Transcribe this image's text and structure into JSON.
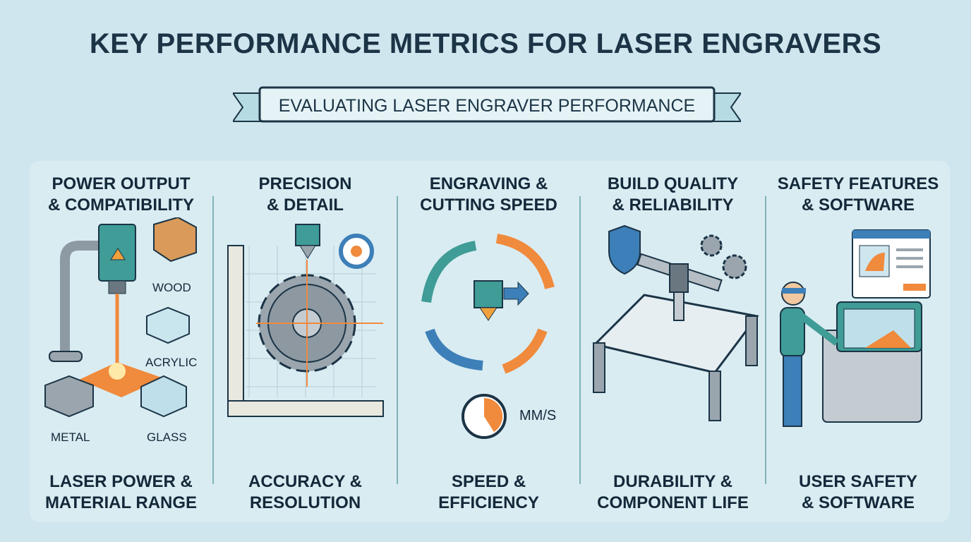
{
  "title": "KEY PERFORMANCE METRICS FOR LASER ENGRAVERS",
  "banner": "EVALUATING LASER ENGRAVER PERFORMANCE",
  "colors": {
    "background": "#cfe6ee",
    "accent_orange": "#f08a3c",
    "teal": "#3f9c96",
    "blue": "#3d7fb8",
    "text": "#13293a"
  },
  "panels": [
    {
      "heading": [
        "POWER OUTPUT",
        "& COMPATIBILITY"
      ],
      "footer": [
        "LASER POWER &",
        "MATERIAL RANGE"
      ],
      "materials": [
        "WOOD",
        "ACRYLIC",
        "METAL",
        "GLASS"
      ]
    },
    {
      "heading": [
        "PRECISION",
        "& DETAIL"
      ],
      "footer": [
        "ACCURACY &",
        "RESOLUTION"
      ]
    },
    {
      "heading": [
        "ENGRAVING &",
        "CUTTING SPEED"
      ],
      "footer": [
        "SPEED &",
        "EFFICIENCY"
      ],
      "unit": "MM/S"
    },
    {
      "heading": [
        "BUILD QUALITY",
        "& RELIABILITY"
      ],
      "footer": [
        "DURABILITY &",
        "COMPONENT LIFE"
      ]
    },
    {
      "heading": [
        "SAFETY FEATURES",
        "& SOFTWARE"
      ],
      "footer": [
        "USER SAFETY",
        "& SOFTWARE"
      ]
    }
  ]
}
